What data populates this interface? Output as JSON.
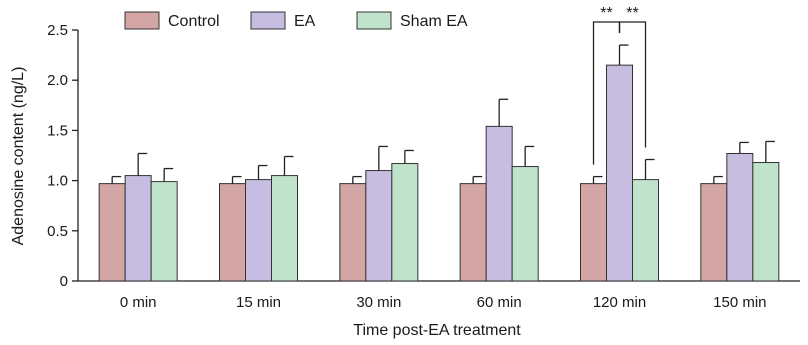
{
  "chart_data": {
    "type": "bar",
    "title": "",
    "xlabel": "Time post-EA treatment",
    "ylabel": "Adenosine content (ng/L)",
    "ylim": [
      0,
      2.5
    ],
    "yticks": [
      0,
      0.5,
      1.0,
      1.5,
      2.0,
      2.5
    ],
    "ytick_labels": [
      "0",
      "0.5",
      "1.0",
      "1.5",
      "2.0",
      "2.5"
    ],
    "categories": [
      "0 min",
      "15 min",
      "30 min",
      "60 min",
      "120 min",
      "150 min"
    ],
    "series": [
      {
        "name": "Control",
        "color": "#d3a5a5",
        "values": [
          0.97,
          0.97,
          0.97,
          0.97,
          0.97,
          0.97
        ],
        "errors": [
          0.07,
          0.07,
          0.07,
          0.07,
          0.07,
          0.07
        ]
      },
      {
        "name": "EA",
        "color": "#c6bde0",
        "values": [
          1.05,
          1.01,
          1.1,
          1.54,
          2.15,
          1.27
        ],
        "errors": [
          0.22,
          0.14,
          0.24,
          0.27,
          0.2,
          0.11
        ]
      },
      {
        "name": "Sham EA",
        "color": "#bfe3cb",
        "values": [
          0.99,
          1.05,
          1.17,
          1.14,
          1.01,
          1.18
        ],
        "errors": [
          0.13,
          0.19,
          0.13,
          0.2,
          0.2,
          0.21
        ]
      }
    ],
    "legend_position": "top",
    "grid": false,
    "annotations": [
      {
        "label": "**",
        "category": "120 min",
        "from_series": "Control",
        "to_series": "EA"
      },
      {
        "label": "**",
        "category": "120 min",
        "from_series": "EA",
        "to_series": "Sham EA"
      }
    ]
  }
}
